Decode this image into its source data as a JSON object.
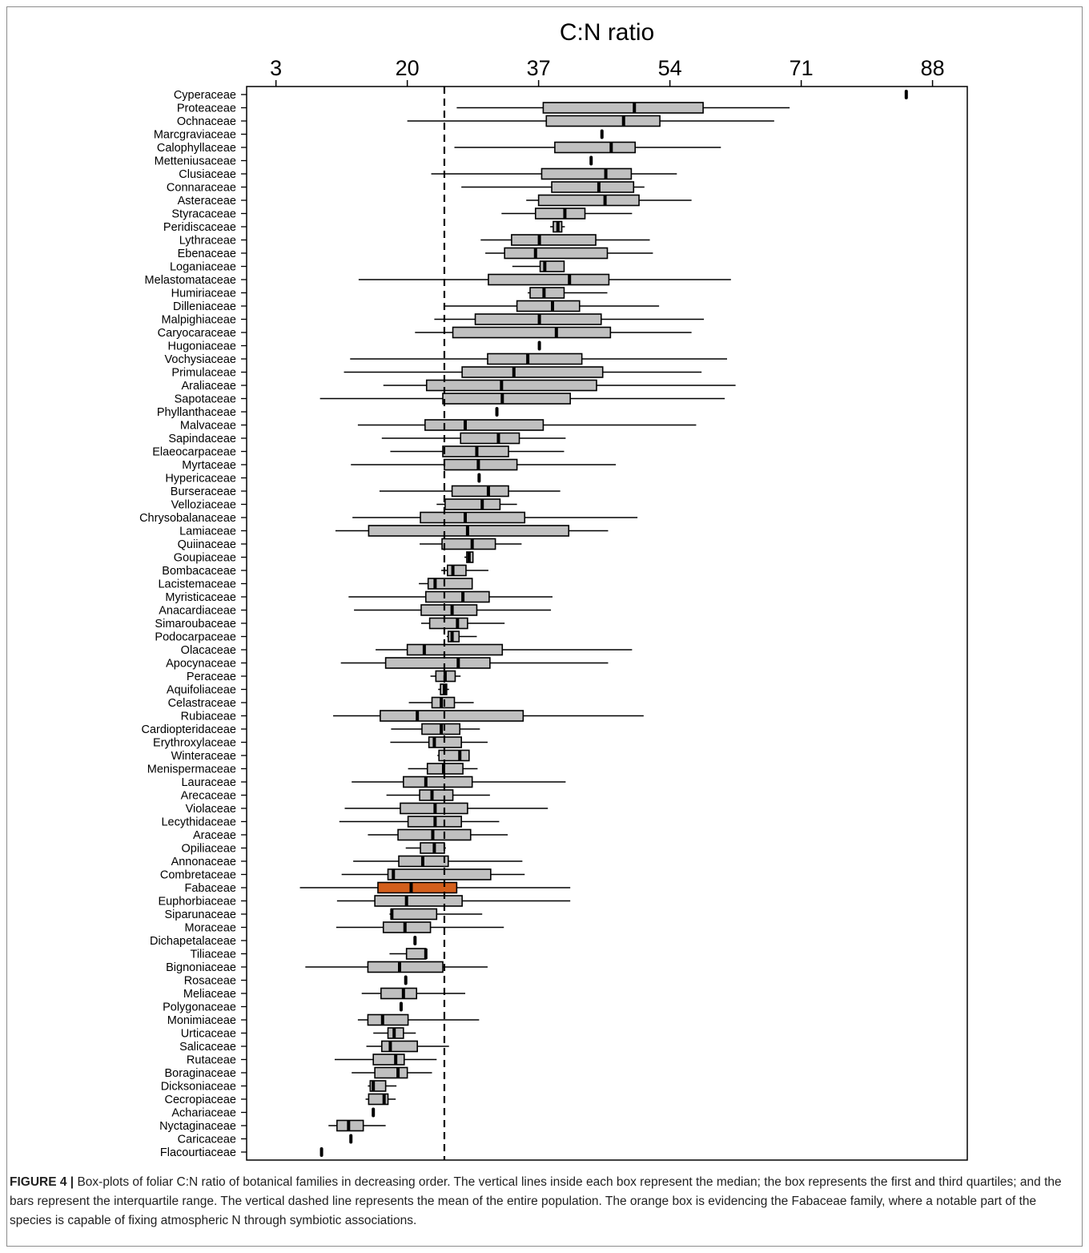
{
  "colors": {
    "box": "#c0c0c0",
    "highlight": "#d35f1c",
    "stroke": "#000000"
  },
  "caption": {
    "label": "FIGURE 4 |",
    "text": "Box-plots of foliar C:N ratio of botanical families in decreasing order. The vertical lines inside each box represent the median; the box represents the first and third quartiles; and the bars represent the interquartile range. The vertical dashed line represents the mean of the entire population. The orange box is evidencing the Fabaceae family, where a notable part of the species is capable of fixing atmospheric N through symbiotic associations."
  },
  "chart_data": {
    "type": "boxplot",
    "title": "C:N ratio",
    "orientation": "horizontal",
    "x_axis_position": "top",
    "xticks": [
      3,
      20,
      37,
      54,
      71,
      88
    ],
    "xlim": [
      -0.8,
      92.5
    ],
    "mean_line": 24.8,
    "highlight": "Fabaceae",
    "families": [
      {
        "name": "Cyperaceae",
        "min": 84.6,
        "q1": 84.6,
        "median": 84.6,
        "q3": 84.6,
        "max": 84.6
      },
      {
        "name": "Proteaceae",
        "min": 26.4,
        "q1": 37.6,
        "median": 49.4,
        "q3": 58.3,
        "max": 69.5
      },
      {
        "name": "Ochnaceae",
        "min": 20.0,
        "q1": 38.0,
        "median": 48.0,
        "q3": 52.7,
        "max": 67.5
      },
      {
        "name": "Marcgraviaceae",
        "min": 45.2,
        "q1": 45.2,
        "median": 45.2,
        "q3": 45.2,
        "max": 45.2
      },
      {
        "name": "Calophyllaceae",
        "min": 26.1,
        "q1": 39.1,
        "median": 46.4,
        "q3": 49.5,
        "max": 60.6
      },
      {
        "name": "Metteniusaceae",
        "min": 43.8,
        "q1": 43.8,
        "median": 43.8,
        "q3": 43.8,
        "max": 43.8
      },
      {
        "name": "Clusiaceae",
        "min": 23.1,
        "q1": 37.4,
        "median": 45.7,
        "q3": 49.0,
        "max": 54.9
      },
      {
        "name": "Connaraceae",
        "min": 27.0,
        "q1": 38.7,
        "median": 44.8,
        "q3": 49.3,
        "max": 50.7
      },
      {
        "name": "Asteraceae",
        "min": 35.4,
        "q1": 37.0,
        "median": 45.6,
        "q3": 50.0,
        "max": 56.8
      },
      {
        "name": "Styracaceae",
        "min": 32.2,
        "q1": 36.6,
        "median": 40.4,
        "q3": 43.0,
        "max": 49.1
      },
      {
        "name": "Peridiscaceae",
        "min": 38.5,
        "q1": 38.9,
        "median": 39.5,
        "q3": 40.0,
        "max": 40.4
      },
      {
        "name": "Lythraceae",
        "min": 29.5,
        "q1": 33.5,
        "median": 37.1,
        "q3": 44.4,
        "max": 51.4
      },
      {
        "name": "Ebenaceae",
        "min": 30.1,
        "q1": 32.6,
        "median": 36.6,
        "q3": 45.9,
        "max": 51.8
      },
      {
        "name": "Loganiaceae",
        "min": 33.6,
        "q1": 37.2,
        "median": 37.8,
        "q3": 40.3,
        "max": 40.3
      },
      {
        "name": "Melastomataceae",
        "min": 13.7,
        "q1": 30.5,
        "median": 41.0,
        "q3": 46.1,
        "max": 61.9
      },
      {
        "name": "Humiriaceae",
        "min": 35.6,
        "q1": 35.9,
        "median": 37.7,
        "q3": 40.3,
        "max": 45.9
      },
      {
        "name": "Dilleniaceae",
        "min": 24.7,
        "q1": 34.2,
        "median": 38.8,
        "q3": 42.3,
        "max": 52.6
      },
      {
        "name": "Malpighiaceae",
        "min": 23.5,
        "q1": 28.8,
        "median": 37.1,
        "q3": 45.1,
        "max": 58.4
      },
      {
        "name": "Caryocaraceae",
        "min": 21.0,
        "q1": 25.9,
        "median": 39.3,
        "q3": 46.3,
        "max": 56.8
      },
      {
        "name": "Hugoniaceae",
        "min": 37.1,
        "q1": 37.1,
        "median": 37.1,
        "q3": 37.1,
        "max": 37.1
      },
      {
        "name": "Vochysiaceae",
        "min": 12.6,
        "q1": 30.4,
        "median": 35.6,
        "q3": 42.6,
        "max": 61.4
      },
      {
        "name": "Primulaceae",
        "min": 11.8,
        "q1": 27.1,
        "median": 33.8,
        "q3": 45.3,
        "max": 58.1
      },
      {
        "name": "Araliaceae",
        "min": 16.9,
        "q1": 22.5,
        "median": 32.2,
        "q3": 44.5,
        "max": 62.5
      },
      {
        "name": "Sapotaceae",
        "min": 8.7,
        "q1": 24.6,
        "median": 32.3,
        "q3": 41.1,
        "max": 61.1
      },
      {
        "name": "Phyllanthaceae",
        "min": 31.6,
        "q1": 31.6,
        "median": 31.6,
        "q3": 31.6,
        "max": 31.6
      },
      {
        "name": "Malvaceae",
        "min": 13.6,
        "q1": 22.3,
        "median": 27.5,
        "q3": 37.6,
        "max": 57.4
      },
      {
        "name": "Sapindaceae",
        "min": 16.7,
        "q1": 26.9,
        "median": 31.8,
        "q3": 34.5,
        "max": 40.5
      },
      {
        "name": "Elaeocarpaceae",
        "min": 17.8,
        "q1": 24.6,
        "median": 29.0,
        "q3": 33.1,
        "max": 40.3
      },
      {
        "name": "Myrtaceae",
        "min": 12.7,
        "q1": 24.8,
        "median": 29.2,
        "q3": 34.2,
        "max": 47.0
      },
      {
        "name": "Hypericaceae",
        "min": 29.3,
        "q1": 29.3,
        "median": 29.3,
        "q3": 29.3,
        "max": 29.3
      },
      {
        "name": "Burseraceae",
        "min": 16.4,
        "q1": 25.8,
        "median": 30.5,
        "q3": 33.1,
        "max": 39.8
      },
      {
        "name": "Velloziaceae",
        "min": 23.8,
        "q1": 24.9,
        "median": 29.7,
        "q3": 32.0,
        "max": 34.2
      },
      {
        "name": "Chrysobalanaceae",
        "min": 12.9,
        "q1": 21.7,
        "median": 27.5,
        "q3": 35.2,
        "max": 49.8
      },
      {
        "name": "Lamiaceae",
        "min": 10.7,
        "q1": 15.0,
        "median": 27.8,
        "q3": 40.9,
        "max": 46.0
      },
      {
        "name": "Quiinaceae",
        "min": 21.6,
        "q1": 24.5,
        "median": 28.4,
        "q3": 31.4,
        "max": 34.8
      },
      {
        "name": "Goupiaceae",
        "min": 27.4,
        "q1": 27.7,
        "median": 28.0,
        "q3": 28.5,
        "max": 28.5
      },
      {
        "name": "Bombacaceae",
        "min": 24.4,
        "q1": 25.2,
        "median": 25.9,
        "q3": 27.6,
        "max": 30.5
      },
      {
        "name": "Lacistemaceae",
        "min": 21.5,
        "q1": 22.7,
        "median": 23.6,
        "q3": 28.4,
        "max": 28.4
      },
      {
        "name": "Myristicaceae",
        "min": 12.4,
        "q1": 22.4,
        "median": 27.2,
        "q3": 30.6,
        "max": 38.8
      },
      {
        "name": "Anacardiaceae",
        "min": 13.1,
        "q1": 21.8,
        "median": 25.8,
        "q3": 29.0,
        "max": 38.6
      },
      {
        "name": "Simaroubaceae",
        "min": 21.8,
        "q1": 22.9,
        "median": 26.5,
        "q3": 27.8,
        "max": 32.6
      },
      {
        "name": "Podocarpaceae",
        "min": 25.1,
        "q1": 25.3,
        "median": 25.8,
        "q3": 26.7,
        "max": 29.0
      },
      {
        "name": "Olacaceae",
        "min": 15.9,
        "q1": 20.0,
        "median": 22.2,
        "q3": 32.3,
        "max": 49.1
      },
      {
        "name": "Apocynaceae",
        "min": 11.4,
        "q1": 17.2,
        "median": 26.6,
        "q3": 30.7,
        "max": 46.0
      },
      {
        "name": "Peraceae",
        "min": 23.0,
        "q1": 23.7,
        "median": 24.9,
        "q3": 26.2,
        "max": 26.9
      },
      {
        "name": "Aquifoliaceae",
        "min": 24.0,
        "q1": 24.3,
        "median": 24.8,
        "q3": 25.1,
        "max": 25.4
      },
      {
        "name": "Celastraceae",
        "min": 20.2,
        "q1": 23.2,
        "median": 24.4,
        "q3": 26.1,
        "max": 28.6
      },
      {
        "name": "Rubiaceae",
        "min": 10.4,
        "q1": 16.5,
        "median": 21.3,
        "q3": 35.0,
        "max": 50.6
      },
      {
        "name": "Cardiopteridaceae",
        "min": 17.9,
        "q1": 21.9,
        "median": 24.4,
        "q3": 26.8,
        "max": 29.4
      },
      {
        "name": "Erythroxylaceae",
        "min": 17.8,
        "q1": 22.8,
        "median": 23.5,
        "q3": 27.0,
        "max": 30.4
      },
      {
        "name": "Winteraceae",
        "min": 23.9,
        "q1": 24.1,
        "median": 26.8,
        "q3": 28.0,
        "max": 28.0
      },
      {
        "name": "Menispermaceae",
        "min": 20.1,
        "q1": 22.6,
        "median": 24.7,
        "q3": 27.2,
        "max": 29.1
      },
      {
        "name": "Lauraceae",
        "min": 12.8,
        "q1": 19.5,
        "median": 22.4,
        "q3": 28.4,
        "max": 40.5
      },
      {
        "name": "Arecaceae",
        "min": 17.3,
        "q1": 21.6,
        "median": 23.2,
        "q3": 25.9,
        "max": 30.7
      },
      {
        "name": "Violaceae",
        "min": 11.9,
        "q1": 19.1,
        "median": 23.6,
        "q3": 27.8,
        "max": 38.2
      },
      {
        "name": "Lecythidaceae",
        "min": 11.2,
        "q1": 20.1,
        "median": 23.6,
        "q3": 27.0,
        "max": 31.9
      },
      {
        "name": "Araceae",
        "min": 14.9,
        "q1": 18.8,
        "median": 23.3,
        "q3": 28.2,
        "max": 33.0
      },
      {
        "name": "Opiliaceae",
        "min": 19.8,
        "q1": 21.7,
        "median": 23.5,
        "q3": 24.8,
        "max": 25.0
      },
      {
        "name": "Annonaceae",
        "min": 13.0,
        "q1": 18.9,
        "median": 22.0,
        "q3": 25.3,
        "max": 34.9
      },
      {
        "name": "Combretaceae",
        "min": 11.5,
        "q1": 17.5,
        "median": 18.2,
        "q3": 30.8,
        "max": 35.2
      },
      {
        "name": "Fabaceae",
        "min": 6.1,
        "q1": 16.2,
        "median": 20.5,
        "q3": 26.4,
        "max": 41.1
      },
      {
        "name": "Euphorbiaceae",
        "min": 10.9,
        "q1": 15.8,
        "median": 19.9,
        "q3": 27.1,
        "max": 41.1
      },
      {
        "name": "Siparunaceae",
        "min": 17.7,
        "q1": 17.9,
        "median": 18.0,
        "q3": 23.8,
        "max": 29.7
      },
      {
        "name": "Moraceae",
        "min": 10.8,
        "q1": 16.9,
        "median": 19.7,
        "q3": 23.0,
        "max": 32.5
      },
      {
        "name": "Dichapetalaceae",
        "min": 21.0,
        "q1": 21.0,
        "median": 21.0,
        "q3": 21.0,
        "max": 21.0
      },
      {
        "name": "Tiliaceae",
        "min": 17.7,
        "q1": 19.9,
        "median": 22.4,
        "q3": 22.4,
        "max": 22.4
      },
      {
        "name": "Bignoniaceae",
        "min": 6.8,
        "q1": 14.9,
        "median": 19.0,
        "q3": 24.6,
        "max": 30.4
      },
      {
        "name": "Rosaceae",
        "min": 19.8,
        "q1": 19.8,
        "median": 19.8,
        "q3": 19.8,
        "max": 19.8
      },
      {
        "name": "Meliaceae",
        "min": 14.1,
        "q1": 16.6,
        "median": 19.5,
        "q3": 21.2,
        "max": 27.5
      },
      {
        "name": "Polygonaceae",
        "min": 19.2,
        "q1": 19.2,
        "median": 19.2,
        "q3": 19.2,
        "max": 19.2
      },
      {
        "name": "Monimiaceae",
        "min": 13.6,
        "q1": 14.9,
        "median": 16.8,
        "q3": 20.1,
        "max": 29.3
      },
      {
        "name": "Urticaceae",
        "min": 15.6,
        "q1": 17.5,
        "median": 18.3,
        "q3": 19.5,
        "max": 21.1
      },
      {
        "name": "Salicaceae",
        "min": 14.7,
        "q1": 16.7,
        "median": 17.8,
        "q3": 21.3,
        "max": 25.4
      },
      {
        "name": "Rutaceae",
        "min": 10.6,
        "q1": 15.6,
        "median": 18.5,
        "q3": 19.6,
        "max": 23.8
      },
      {
        "name": "Boraginaceae",
        "min": 12.8,
        "q1": 15.8,
        "median": 18.8,
        "q3": 20.0,
        "max": 23.2
      },
      {
        "name": "Dicksoniaceae",
        "min": 14.9,
        "q1": 15.2,
        "median": 15.6,
        "q3": 17.2,
        "max": 18.6
      },
      {
        "name": "Cecropiaceae",
        "min": 14.6,
        "q1": 15.0,
        "median": 17.0,
        "q3": 17.5,
        "max": 18.5
      },
      {
        "name": "Achariaceae",
        "min": 15.6,
        "q1": 15.6,
        "median": 15.6,
        "q3": 15.6,
        "max": 15.6
      },
      {
        "name": "Nyctaginaceae",
        "min": 9.8,
        "q1": 10.9,
        "median": 12.4,
        "q3": 14.3,
        "max": 17.2
      },
      {
        "name": "Caricaceae",
        "min": 12.7,
        "q1": 12.7,
        "median": 12.7,
        "q3": 12.7,
        "max": 12.7
      },
      {
        "name": "Flacourtiaceae",
        "min": 8.9,
        "q1": 8.9,
        "median": 8.9,
        "q3": 8.9,
        "max": 8.9
      }
    ]
  }
}
